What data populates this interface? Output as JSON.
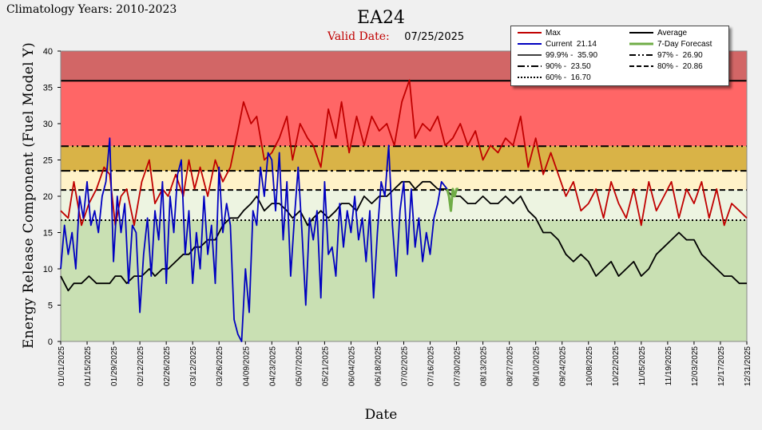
{
  "header": {
    "title": "EA24",
    "climatology": "Climatology Years: 2010-2023",
    "valid_label": "Valid Date:",
    "valid_date": "07/25/2025"
  },
  "legend": {
    "max": "Max",
    "average": "Average",
    "current": "Current  21.14",
    "forecast": "7-Day Forecast",
    "p999": "99.9% -  35.90",
    "p97": "97% -  26.90",
    "p90": "90% -  23.50",
    "p80": "80% -  20.86",
    "p60": "60% -  16.70"
  },
  "colors": {
    "max": "#c00000",
    "current": "#0000c0",
    "average": "#000000",
    "forecast": "#70ad47",
    "band_top": "#d26666",
    "band_97_999": "#ff6666",
    "band_90_97": "#d9b347",
    "band_80_90": "#fff2c8",
    "band_60_80": "#edf4e1",
    "band_0_60": "#c9e0b3"
  },
  "chart_data": {
    "type": "line",
    "title": "EA24",
    "xlabel": "Date",
    "ylabel": "Energy Release Component (Fuel Model Y)",
    "ylim": [
      0,
      40
    ],
    "yticks": [
      0,
      5,
      10,
      15,
      20,
      25,
      30,
      35,
      40
    ],
    "x_range": [
      "01/01/2025",
      "12/31/2025"
    ],
    "x_ticks": [
      "01/01/2025",
      "01/15/2025",
      "01/29/2025",
      "02/12/2025",
      "02/26/2025",
      "03/12/2025",
      "03/26/2025",
      "04/09/2025",
      "04/23/2025",
      "05/07/2025",
      "05/21/2025",
      "06/04/2025",
      "06/18/2025",
      "07/02/2025",
      "07/16/2025",
      "07/30/2025",
      "08/13/2025",
      "08/27/2025",
      "09/10/2025",
      "09/24/2025",
      "10/08/2025",
      "10/22/2025",
      "11/05/2025",
      "11/19/2025",
      "12/03/2025",
      "12/17/2025",
      "12/31/2025"
    ],
    "thresholds": [
      {
        "name": "99.9%",
        "value": 35.9
      },
      {
        "name": "97%",
        "value": 26.9
      },
      {
        "name": "90%",
        "value": 23.5
      },
      {
        "name": "80%",
        "value": 20.86
      },
      {
        "name": "60%",
        "value": 16.7
      }
    ],
    "series": [
      {
        "name": "Max",
        "x": [
          "01/01",
          "01/05",
          "01/08",
          "01/12",
          "01/16",
          "01/20",
          "01/24",
          "01/27",
          "01/30",
          "02/02",
          "02/05",
          "02/09",
          "02/13",
          "02/17",
          "02/20",
          "02/24",
          "02/27",
          "03/03",
          "03/07",
          "03/10",
          "03/13",
          "03/16",
          "03/20",
          "03/24",
          "03/28",
          "04/01",
          "04/05",
          "04/08",
          "04/12",
          "04/15",
          "04/19",
          "04/23",
          "04/27",
          "05/01",
          "05/04",
          "05/08",
          "05/12",
          "05/15",
          "05/19",
          "05/23",
          "05/27",
          "05/30",
          "06/03",
          "06/07",
          "06/11",
          "06/15",
          "06/19",
          "06/23",
          "06/27",
          "07/01",
          "07/05",
          "07/08",
          "07/12",
          "07/16",
          "07/20",
          "07/24",
          "07/28",
          "08/01",
          "08/05",
          "08/09",
          "08/13",
          "08/17",
          "08/21",
          "08/25",
          "08/29",
          "09/02",
          "09/06",
          "09/10",
          "09/14",
          "09/18",
          "09/22",
          "09/26",
          "09/30",
          "10/04",
          "10/08",
          "10/12",
          "10/16",
          "10/20",
          "10/24",
          "10/28",
          "11/01",
          "11/05",
          "11/09",
          "11/13",
          "11/17",
          "11/21",
          "11/25",
          "11/29",
          "12/03",
          "12/07",
          "12/11",
          "12/15",
          "12/19",
          "12/23",
          "12/27",
          "12/31"
        ],
        "values": [
          18,
          17,
          22,
          16,
          19,
          21,
          24,
          23,
          16,
          20,
          21,
          16,
          22,
          25,
          19,
          21,
          20,
          23,
          20,
          25,
          21,
          24,
          20,
          25,
          22,
          24,
          29,
          33,
          30,
          31,
          25,
          26,
          28,
          31,
          25,
          30,
          28,
          27,
          24,
          32,
          28,
          33,
          26,
          31,
          27,
          31,
          29,
          30,
          27,
          33,
          36,
          28,
          30,
          29,
          31,
          27,
          28,
          30,
          27,
          29,
          25,
          27,
          26,
          28,
          27,
          31,
          24,
          28,
          23,
          26,
          23,
          20,
          22,
          18,
          19,
          21,
          17,
          22,
          19,
          17,
          21,
          16,
          22,
          18,
          20,
          22,
          17,
          21,
          19,
          22,
          17,
          21,
          16,
          19,
          18,
          17
        ]
      },
      {
        "name": "Average",
        "x": [
          "01/01",
          "01/05",
          "01/08",
          "01/12",
          "01/16",
          "01/20",
          "01/24",
          "01/27",
          "01/30",
          "02/02",
          "02/05",
          "02/09",
          "02/13",
          "02/17",
          "02/20",
          "02/24",
          "02/27",
          "03/03",
          "03/07",
          "03/10",
          "03/13",
          "03/16",
          "03/20",
          "03/24",
          "03/28",
          "04/01",
          "04/05",
          "04/08",
          "04/12",
          "04/15",
          "04/19",
          "04/23",
          "04/27",
          "05/01",
          "05/04",
          "05/08",
          "05/12",
          "05/15",
          "05/19",
          "05/23",
          "05/27",
          "05/30",
          "06/03",
          "06/07",
          "06/11",
          "06/15",
          "06/19",
          "06/23",
          "06/27",
          "07/01",
          "07/05",
          "07/08",
          "07/12",
          "07/16",
          "07/20",
          "07/24",
          "07/28",
          "08/01",
          "08/05",
          "08/09",
          "08/13",
          "08/17",
          "08/21",
          "08/25",
          "08/29",
          "09/02",
          "09/06",
          "09/10",
          "09/14",
          "09/18",
          "09/22",
          "09/26",
          "09/30",
          "10/04",
          "10/08",
          "10/12",
          "10/16",
          "10/20",
          "10/24",
          "10/28",
          "11/01",
          "11/05",
          "11/09",
          "11/13",
          "11/17",
          "11/21",
          "11/25",
          "11/29",
          "12/03",
          "12/07",
          "12/11",
          "12/15",
          "12/19",
          "12/23",
          "12/27",
          "12/31"
        ],
        "values": [
          9,
          7,
          8,
          8,
          9,
          8,
          8,
          8,
          9,
          9,
          8,
          9,
          9,
          10,
          9,
          10,
          10,
          11,
          12,
          12,
          13,
          13,
          14,
          14,
          16,
          17,
          17,
          18,
          19,
          20,
          18,
          19,
          19,
          18,
          17,
          18,
          16,
          17,
          18,
          17,
          18,
          19,
          19,
          18,
          20,
          19,
          20,
          20,
          21,
          22,
          22,
          21,
          22,
          22,
          21,
          21,
          20,
          20,
          19,
          19,
          20,
          19,
          19,
          20,
          19,
          20,
          18,
          17,
          15,
          15,
          14,
          12,
          11,
          12,
          11,
          9,
          10,
          11,
          9,
          10,
          11,
          9,
          10,
          12,
          13,
          14,
          15,
          14,
          14,
          12,
          11,
          10,
          9,
          9,
          8,
          8
        ]
      },
      {
        "name": "Current",
        "x": [
          "01/01",
          "01/03",
          "01/05",
          "01/07",
          "01/09",
          "01/11",
          "01/13",
          "01/15",
          "01/17",
          "01/19",
          "01/21",
          "01/23",
          "01/25",
          "01/27",
          "01/29",
          "01/31",
          "02/02",
          "02/04",
          "02/06",
          "02/08",
          "02/10",
          "02/12",
          "02/14",
          "02/16",
          "02/18",
          "02/20",
          "02/22",
          "02/24",
          "02/26",
          "02/28",
          "03/02",
          "03/04",
          "03/06",
          "03/08",
          "03/10",
          "03/12",
          "03/14",
          "03/16",
          "03/18",
          "03/20",
          "03/22",
          "03/24",
          "03/26",
          "03/28",
          "03/30",
          "04/01",
          "04/03",
          "04/05",
          "04/07",
          "04/09",
          "04/11",
          "04/13",
          "04/15",
          "04/17",
          "04/19",
          "04/21",
          "04/23",
          "04/25",
          "04/27",
          "04/29",
          "05/01",
          "05/03",
          "05/05",
          "05/07",
          "05/09",
          "05/11",
          "05/13",
          "05/15",
          "05/17",
          "05/19",
          "05/21",
          "05/23",
          "05/25",
          "05/27",
          "05/29",
          "05/31",
          "06/02",
          "06/04",
          "06/06",
          "06/08",
          "06/10",
          "06/12",
          "06/14",
          "06/16",
          "06/18",
          "06/20",
          "06/22",
          "06/24",
          "06/26",
          "06/28",
          "06/30",
          "07/02",
          "07/04",
          "07/06",
          "07/08",
          "07/10",
          "07/12",
          "07/14",
          "07/16",
          "07/18",
          "07/20",
          "07/22",
          "07/25"
        ],
        "values": [
          10,
          16,
          12,
          15,
          10,
          20,
          17,
          22,
          16,
          18,
          15,
          20,
          22,
          28,
          11,
          20,
          15,
          19,
          8,
          16,
          15,
          4,
          12,
          17,
          9,
          18,
          14,
          22,
          8,
          20,
          15,
          23,
          25,
          12,
          18,
          8,
          15,
          10,
          20,
          12,
          16,
          8,
          24,
          15,
          19,
          16,
          3,
          1,
          0,
          10,
          4,
          18,
          16,
          24,
          20,
          26,
          25,
          18,
          26,
          14,
          22,
          9,
          17,
          24,
          15,
          5,
          17,
          14,
          18,
          6,
          22,
          12,
          13,
          9,
          19,
          13,
          18,
          15,
          20,
          14,
          17,
          11,
          18,
          6,
          15,
          22,
          20,
          27,
          16,
          9,
          18,
          22,
          12,
          21,
          13,
          17,
          11,
          15,
          12,
          17,
          19,
          22,
          21
        ]
      },
      {
        "name": "7-Day Forecast",
        "x": [
          "07/25",
          "07/26",
          "07/27",
          "07/28",
          "07/29",
          "07/30",
          "07/31"
        ],
        "values": [
          21,
          20,
          18,
          21,
          20,
          21,
          21
        ]
      }
    ]
  }
}
